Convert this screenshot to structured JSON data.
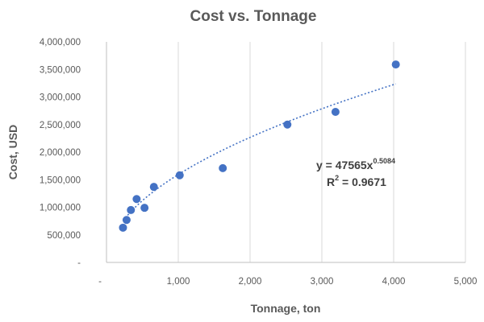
{
  "chart_data": {
    "type": "scatter",
    "title": "Cost vs. Tonnage",
    "xlabel": "Tonnage, ton",
    "ylabel": "Cost, USD",
    "xlim": [
      0,
      5000
    ],
    "ylim": [
      0,
      4000000
    ],
    "x_ticks": [
      "-",
      "1,000",
      "2,000",
      "3,000",
      "4,000",
      "5,000"
    ],
    "y_ticks": [
      "-",
      "500,000",
      "1,000,000",
      "1,500,000",
      "2,000,000",
      "2,500,000",
      "3,000,000",
      "3,500,000",
      "4,000,000"
    ],
    "x_tick_values": [
      0,
      1000,
      2000,
      3000,
      4000,
      5000
    ],
    "y_tick_values": [
      0,
      500000,
      1000000,
      1500000,
      2000000,
      2500000,
      3000000,
      3500000,
      4000000
    ],
    "grid": "vertical",
    "marker_color": "#4472C4",
    "trendline_color": "#4472C4",
    "points": [
      {
        "x": 230,
        "y": 630000
      },
      {
        "x": 280,
        "y": 770000
      },
      {
        "x": 340,
        "y": 950000
      },
      {
        "x": 420,
        "y": 1150000
      },
      {
        "x": 530,
        "y": 990000
      },
      {
        "x": 660,
        "y": 1370000
      },
      {
        "x": 1020,
        "y": 1580000
      },
      {
        "x": 1620,
        "y": 1710000
      },
      {
        "x": 2520,
        "y": 2500000
      },
      {
        "x": 3190,
        "y": 2730000
      },
      {
        "x": 4030,
        "y": 3590000
      }
    ],
    "trendline": {
      "type": "power",
      "coefficient": 47565,
      "exponent": 0.5084,
      "x_range": [
        230,
        4030
      ]
    },
    "annotations": {
      "equation_base": "y = 47565x",
      "equation_exponent": "0.5084",
      "r2_base": "R",
      "r2_sup": "2",
      "r2_value": " = 0.9671"
    }
  }
}
